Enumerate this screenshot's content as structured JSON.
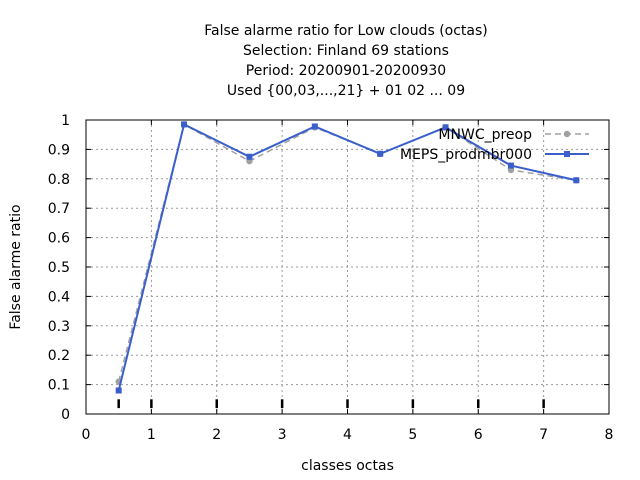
{
  "chart_data": {
    "type": "line",
    "title_lines": [
      "False alarme ratio  for Low clouds (octas)",
      "Selection: Finland     69 stations",
      "Period: 20200901-20200930",
      "Used {00,03,...,21} + 01 02 ... 09"
    ],
    "xlabel": "classes octas",
    "ylabel": "False alarme ratio",
    "xlim": [
      0,
      8
    ],
    "ylim": [
      0,
      1
    ],
    "xticks": [
      0,
      1,
      2,
      3,
      4,
      5,
      6,
      7,
      8
    ],
    "yticks": [
      0,
      0.1,
      0.2,
      0.3,
      0.4,
      0.5,
      0.6,
      0.7,
      0.8,
      0.9,
      1
    ],
    "ytick_labels": [
      "0",
      "0.1",
      "0.2",
      "0.3",
      "0.4",
      "0.5",
      "0.6",
      "0.7",
      "0.8",
      "0.9",
      "1"
    ],
    "grid": true,
    "legend_position": "top-right",
    "series": [
      {
        "name": "MNWC_preop",
        "color": "#a0a0a0",
        "style": "dashed",
        "x": [
          0.5,
          1.5,
          2.5,
          3.5,
          4.5,
          5.5,
          6.5,
          7.5
        ],
        "y": [
          0.11,
          0.985,
          0.86,
          0.975,
          0.885,
          0.975,
          0.83,
          0.795
        ]
      },
      {
        "name": "MEPS_prodmbr000",
        "color": "#3a5fcd",
        "style": "solid",
        "x": [
          0.5,
          1.5,
          2.5,
          3.5,
          4.5,
          5.5,
          6.5,
          7.5
        ],
        "y": [
          0.08,
          0.985,
          0.875,
          0.978,
          0.885,
          0.975,
          0.845,
          0.795
        ]
      }
    ],
    "tick_bars": {
      "x": [
        0.5,
        1,
        2,
        3,
        4,
        5,
        6,
        7
      ],
      "y_from": 0.02,
      "y_to": 0.05
    }
  }
}
